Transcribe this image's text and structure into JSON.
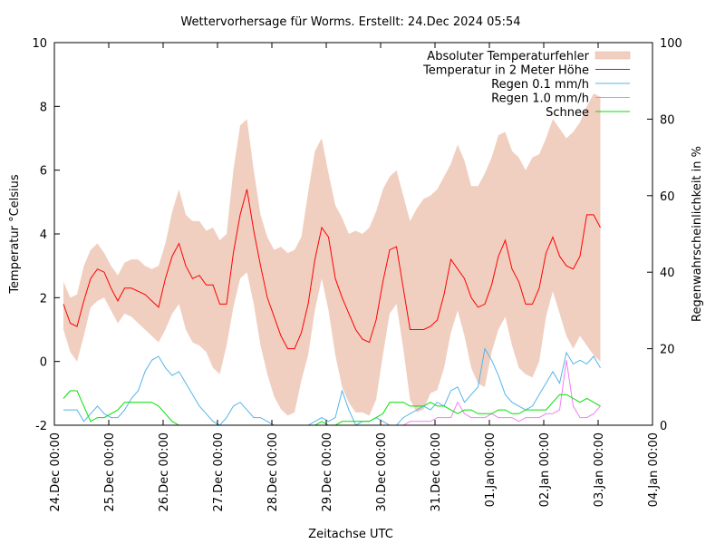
{
  "chart_data": {
    "type": "line",
    "title": "Wettervorhersage für Worms. Erstellt: 24.Dec 2024 05:54",
    "xlabel": "Zeitachse UTC",
    "ylabel": "Temperatur °Celsius",
    "y2label": "Regenwahrscheinlichkeit in %",
    "ylim": [
      -2,
      10
    ],
    "y2lim": [
      0,
      100
    ],
    "xlim_hours": [
      0,
      264
    ],
    "yticks": [
      "-2",
      "0",
      "2",
      "4",
      "6",
      "8",
      "10"
    ],
    "y2ticks": [
      "0",
      "20",
      "40",
      "60",
      "80",
      "100"
    ],
    "xticks": [
      "24.Dec 00:00",
      "25.Dec 00:00",
      "26.Dec 00:00",
      "27.Dec 00:00",
      "28.Dec 00:00",
      "29.Dec 00:00",
      "30.Dec 00:00",
      "31.Dec 00:00",
      "01.Jan 00:00",
      "02.Jan 00:00",
      "03.Jan 00:00",
      "04.Jan 00:00"
    ],
    "grid": false,
    "legend_position": "top-right",
    "legend": [
      {
        "label": "Absoluter Temperaturfehler",
        "color": "#f0cfc0",
        "kind": "area"
      },
      {
        "label": "Temperatur in 2 Meter Höhe",
        "color": "#ff0000",
        "kind": "line"
      },
      {
        "label": "Regen 0.1 mm/h",
        "color": "#56b4e9",
        "kind": "line"
      },
      {
        "label": "Regen 1.0 mm/h",
        "color": "#ee82ee",
        "kind": "line"
      },
      {
        "label": "Schnee",
        "color": "#00e000",
        "kind": "line"
      }
    ],
    "x_hours_start": 4,
    "x_hours_step": 3,
    "series": [
      {
        "name": "Temperatur in 2 Meter Höhe",
        "axis": "y",
        "values": [
          1.8,
          1.2,
          1.1,
          1.9,
          2.6,
          2.9,
          2.8,
          2.3,
          1.9,
          2.3,
          2.3,
          2.2,
          2.1,
          1.9,
          1.7,
          2.6,
          3.3,
          3.7,
          3.0,
          2.6,
          2.7,
          2.4,
          2.4,
          1.8,
          1.8,
          3.4,
          4.6,
          5.4,
          4.1,
          3.0,
          2.0,
          1.4,
          0.8,
          0.4,
          0.4,
          0.9,
          1.8,
          3.2,
          4.2,
          3.9,
          2.6,
          2.0,
          1.5,
          1.0,
          0.7,
          0.6,
          1.3,
          2.5,
          3.5,
          3.6,
          2.3,
          1.0,
          1.0,
          1.0,
          1.1,
          1.3,
          2.1,
          3.2,
          2.9,
          2.6,
          2.0,
          1.7,
          1.8,
          2.4,
          3.3,
          3.8,
          2.9,
          2.5,
          1.8,
          1.8,
          2.3,
          3.4,
          3.9,
          3.3,
          3.0,
          2.9,
          3.3,
          4.6,
          4.6,
          4.2
        ]
      },
      {
        "name": "Absoluter Temperaturfehler (oben)",
        "axis": "y",
        "values": [
          2.5,
          2.0,
          2.1,
          3.0,
          3.5,
          3.7,
          3.4,
          3.0,
          2.7,
          3.1,
          3.2,
          3.2,
          3.0,
          2.9,
          3.0,
          3.7,
          4.7,
          5.4,
          4.6,
          4.4,
          4.4,
          4.1,
          4.2,
          3.8,
          4.0,
          6.0,
          7.4,
          7.6,
          6.0,
          4.6,
          3.9,
          3.5,
          3.6,
          3.4,
          3.5,
          3.9,
          5.3,
          6.6,
          7.0,
          5.9,
          4.9,
          4.5,
          4.0,
          4.1,
          4.0,
          4.2,
          4.7,
          5.4,
          5.8,
          6.0,
          5.2,
          4.4,
          4.8,
          5.1,
          5.2,
          5.4,
          5.8,
          6.2,
          6.8,
          6.3,
          5.5,
          5.5,
          5.9,
          6.4,
          7.1,
          7.2,
          6.6,
          6.4,
          6.0,
          6.4,
          6.5,
          7.0,
          7.6,
          7.3,
          7.0,
          7.2,
          7.5,
          8.0,
          8.4,
          8.3
        ]
      },
      {
        "name": "Absoluter Temperaturfehler (unten)",
        "axis": "y",
        "values": [
          1.0,
          0.3,
          0.0,
          0.8,
          1.7,
          1.9,
          2.0,
          1.6,
          1.2,
          1.5,
          1.4,
          1.2,
          1.0,
          0.8,
          0.6,
          1.0,
          1.5,
          1.8,
          1.0,
          0.6,
          0.5,
          0.3,
          -0.2,
          -0.4,
          0.5,
          1.7,
          2.6,
          2.8,
          1.8,
          0.5,
          -0.4,
          -1.1,
          -1.5,
          -1.7,
          -1.6,
          -0.6,
          0.2,
          1.6,
          2.6,
          1.6,
          0.2,
          -0.8,
          -1.3,
          -1.6,
          -1.6,
          -1.7,
          -1.2,
          0.2,
          1.5,
          1.8,
          0.4,
          -1.2,
          -1.6,
          -1.5,
          -1.0,
          -0.9,
          -0.2,
          0.9,
          1.6,
          0.8,
          -0.2,
          -0.7,
          -0.8,
          0.3,
          1.0,
          1.4,
          0.5,
          -0.2,
          -0.4,
          -0.5,
          0.0,
          1.4,
          2.2,
          1.5,
          0.8,
          0.4,
          0.8,
          0.5,
          0.2,
          0.0
        ]
      },
      {
        "name": "Regen 0.1 mm/h",
        "axis": "y2",
        "values": [
          4,
          4,
          4,
          1,
          3,
          5,
          3,
          2,
          2,
          4,
          7,
          9,
          14,
          17,
          18,
          15,
          13,
          14,
          11,
          8,
          5,
          3,
          1,
          0,
          2,
          5,
          6,
          4,
          2,
          2,
          1,
          0,
          0,
          0,
          0,
          0,
          0,
          1,
          2,
          1,
          2,
          9,
          4,
          0,
          1,
          1,
          2,
          1,
          0,
          0,
          2,
          3,
          4,
          5,
          4,
          6,
          5,
          9,
          10,
          6,
          8,
          10,
          20,
          17,
          13,
          8,
          6,
          5,
          4,
          5,
          8,
          11,
          14,
          11,
          19,
          16,
          17,
          16,
          18,
          15
        ]
      },
      {
        "name": "Regen 1.0 mm/h",
        "axis": "y2",
        "values": [
          0,
          0,
          0,
          0,
          0,
          0,
          0,
          0,
          0,
          0,
          0,
          0,
          0,
          0,
          0,
          0,
          0,
          0,
          0,
          0,
          0,
          0,
          0,
          0,
          0,
          0,
          0,
          0,
          0,
          0,
          0,
          0,
          0,
          0,
          0,
          0,
          0,
          0,
          0,
          0,
          0,
          0,
          0,
          0,
          0,
          0,
          0,
          0,
          0,
          0,
          0,
          1,
          1,
          1,
          1,
          2,
          2,
          2,
          6,
          3,
          2,
          2,
          2,
          3,
          2,
          2,
          2,
          1,
          2,
          2,
          2,
          3,
          3,
          4,
          17,
          5,
          2,
          2,
          3,
          5
        ]
      },
      {
        "name": "Schnee",
        "axis": "y2",
        "values": [
          7,
          9,
          9,
          5,
          1,
          2,
          2,
          3,
          4,
          6,
          6,
          6,
          6,
          6,
          5,
          3,
          1,
          0,
          0,
          0,
          0,
          0,
          0,
          0,
          0,
          0,
          0,
          0,
          0,
          0,
          0,
          0,
          0,
          0,
          0,
          0,
          0,
          0,
          1,
          0,
          0,
          1,
          1,
          1,
          1,
          1,
          2,
          3,
          6,
          6,
          6,
          5,
          5,
          5,
          6,
          5,
          5,
          4,
          3,
          4,
          4,
          3,
          3,
          3,
          4,
          4,
          3,
          3,
          4,
          4,
          4,
          4,
          6,
          8,
          8,
          7,
          6,
          7,
          6,
          5
        ]
      }
    ]
  }
}
